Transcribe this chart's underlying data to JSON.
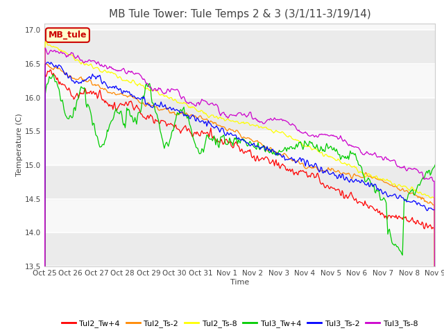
{
  "title": "MB Tule Tower: Tule Temps 2 & 3 (3/1/11-3/19/14)",
  "xlabel": "Time",
  "ylabel": "Temperature (C)",
  "ylim": [
    13.5,
    17.1
  ],
  "background_color": "#ffffff",
  "plot_bg_light": "#e8e8e8",
  "plot_bg_dark": "#d8d8d8",
  "legend_label": "MB_tule",
  "legend_bg": "#ffffcc",
  "legend_border": "#cc0000",
  "series_colors": {
    "Tul2_Tw+4": "#ff0000",
    "Tul2_Ts-2": "#ff8800",
    "Tul2_Ts-8": "#ffff00",
    "Tul3_Tw+4": "#00cc00",
    "Tul3_Ts-2": "#0000ff",
    "Tul3_Ts-8": "#cc00cc"
  },
  "xtick_labels": [
    "Oct 25",
    "Oct 26",
    "Oct 27",
    "Oct 28",
    "Oct 29",
    "Oct 30",
    "Oct 31",
    "Nov 1",
    "Nov 2",
    "Nov 3",
    "Nov 4",
    "Nov 5",
    "Nov 6",
    "Nov 7",
    "Nov 8",
    "Nov 9"
  ],
  "n_points": 480,
  "title_fontsize": 11,
  "tick_fontsize": 7.5,
  "legend_fontsize": 8
}
